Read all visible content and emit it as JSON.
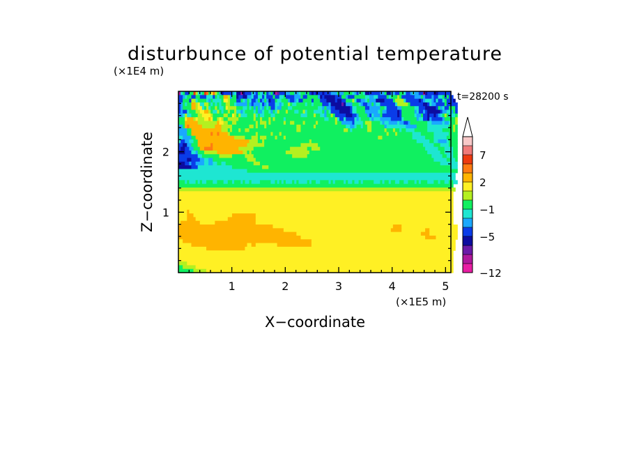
{
  "chart_data": {
    "type": "heatmap",
    "title": "disturbunce of potential temperature",
    "xlabel": "X−coordinate",
    "ylabel": "Z−coordinate",
    "x_unit": "(×1E5 m)",
    "y_unit": "(×1E4 m)",
    "time_label": "t=28200 s",
    "x_ticks": [
      "1",
      "2",
      "3",
      "4",
      "5"
    ],
    "y_ticks": [
      "1",
      "2"
    ],
    "xlim": [
      0,
      5.1
    ],
    "ylim": [
      0,
      3.0
    ],
    "colorbar": {
      "labels": [
        "7",
        "2",
        "−1",
        "−5",
        "−12"
      ],
      "label_values": [
        7,
        2,
        -1,
        -5,
        -12
      ],
      "levels": [
        -12,
        -10,
        -8,
        -6,
        -5,
        -3,
        -2,
        -1,
        0,
        1,
        2,
        3,
        5,
        7,
        9,
        11
      ],
      "colors": [
        "#e81ea3",
        "#b0189c",
        "#6a1aa8",
        "#0c0ca0",
        "#0a3ce8",
        "#1aa8ff",
        "#1ee6d2",
        "#10f060",
        "#b4f020",
        "#fff024",
        "#ffb400",
        "#ff7a12",
        "#ee3a10",
        "#f07a7a",
        "#f8c8c8"
      ],
      "extend": "max",
      "overflow_color": "#ffffff"
    },
    "field": {
      "rows_from_top": [
        "BGHEEHHMIGGHMLHJLIHFDEEEEFGDDBDEEEGFEHGFHEFHEBCEEEFFHHFFGHHFHEDEDEEDEEEFFFHFFHHHHGFEGHGDDEEEEEFFHDDFFEEHHGEEFGFFEEBDEEEDDEEEEEE",
        "EEFGHHEEHHEEEGGGEHGHHKKIFHHDEEDDFFGEEGGEGEEEHEEGGHEEEEFFFHEEHHHHHFDEDDDDDEEEHHFEEEHHHHHGGFFGGEEEEHGHHHIHEEEEEEFFFHFEEEFEEGGHEHEE",
        "EEHHHEIIGHHHHGFHGGGGHJJIHHHEEHGFHGEEFHEFHFDEEHGGHHHFEEFGEEHHHHEHHHEEEDDDDEDDEEHHHIGEEFFGHFFFDDDDEEEEHIIIIGEEEEEEDEFGGGFEGEEGHEEED",
        "EFHGHHKKIJGGIIHGHGHGHHIIHHGFFFFFHFEFFFGEFGEEEGGFGHHIHGGHHHHGHHGHHHHEEEFDDDDDCDFFFHHHGFEEFFHFGGEEEEEEEGIIIIIHEEEEEEDDEGFFEEEEHEEEEE",
        "EFHHHHKKIJJGHIGHHIHGGHJIIIIHHHGGHGHFHFGFHGHEEGFFHHHGGHHHHHHHHHHHHGGFHFFEEDDDDDDDEGGHHHHEEFFFFFHHGEEEEEFFHHHHHHGGEEEDDDDDEHFGEEHHHE",
        "EFEEGHHHIIJJKKIHGGIHGHHIHHIGGFGHHHHGHFFGHHGFHGIHHHIHHHGGHHIGHHHGGGGHFHGEEEEDDDDDEGGHHHHFFFFFFGHFFEEEEEDEHHHHHHFGEEFEDDDDDDEFFGGFHE",
        "FFGIGGHHHIIJJJJIHHHHHIIHHJIHIGGGHHHIGHGGHHHGGHHHHHHHHHHHHGGGHHHIHHGGFHHIHEEEEEDDDEEFHHHHFEGFFFHEEEEEEEDEHHHHHHGFFHEEDEEDEFGHIHFGGH",
        "HHHJKKKIJIIIJJKJHHIJIHHIIIIIHHHHHHHIHHIHHHIHIHHHHGHHHHHHHHHHHHHHHHHHGGHHHIGEEGEEEEGFGHHHHGFGGGFFFFFEEEEEGHHHHHHFGGEEDFEEEEEFHHHHHI",
        "HHHKKKKKKIIIIIIIIIKJJIIHHIIHHHHHHHHHIHIIIHIHHHHHHIHHIIHHHHIHHHHHIHHHHHHHHIHHFFFFFEGGGGHIIIHHHHGFGGFFFFGFFEEFHHHHHHHHGGFFFFFGFFGHHI",
        "FFHKLKKKKKKIIIIIIKKKIIIIIHHHHHHHHIIHIHHHIHHHHHHHHHHHHHHIIHHHHHHIHHHHHHHHHHHHHHGGFFGHHGHHIIHHHHHHFGGGGGGGGGFFFFFHHHHHGGGGGGGGGGHHIH",
        "FFFFHHKKKKKKKKKKKKKKIIIHIHHHIHHIIHHHHHHHHHHHHHHHHHHHHHHIIHHHHHHHHHHHHHHHHHHHHIIHGHHHHHHHIIHHHHHHIHHHIHHGHHGGGGHHHHHHGGGGGGGHHHHHIH",
        "FFFFHHKKKKKKKKKLKKLKKKKIHHHHHHHHHHHHIHHHHHHIHHHIHHHHHHHHHHHHHHHHHHHHHHHHHHHHHHHHHHHHHHHHHHHHHHHHHIHHHIHHHHHHHGGGGHHHHHHGGGGGGGHHHH",
        "GGFFFFHHKKKKKKKKKKKKKKKKKKIIIIIHHHIIIHIIIHHHHIHHHIHHHHHHHHHHHHHHHHHHHHHHHHHHHHHHHHHHHHHHHHHHHIIHHHHHHHHHHHHHHGGGGGGHHHHGGGGGGHHHHH",
        "GEEFFGGHHKKKKKKKKKKKKKKKKKKKKKKKKIIIIHHIHHHHHHHHHHHHHHHHHHHHHIHHHHHHHHHHHHHHHHHHHHHHHHHHHHHHHHHHHHHHHHHHHHHHHHHGGGGGGHHGGFFFFGHHHH",
        "EEDDFFHHHKKKKKKLKKKKKKKKKKKKKKKKIIIIIIIIHHHHHHHHHHHHHHHHHIIIIIIIIHHHHHHHHHHHHHHHHHHHHHHHHHHHHHHHHHHHHHHHHHHHHHHHHHGGGGGHHHGGGGHHHH",
        "EDDEEFFHHHKKLLLLKKKKKKKKKKKKIIIIIIIHHHHHHHHHHHHHHHHHIIIIIIIIHHIIIIHHHHHHHHHHHHHHHHHHHHHHHHHHHHHHHHHHHHHHHHHHHHHHHHHGGGGGGHHHGGGGHH",
        "DDDEEEGGFHHHIIIIIIKKKKKKKKKKKKIIHIHHHHHHHHHHHHHHHHIIIIIIIIIIIHHHHHHHHHHHHHHHHHHHHHHHHHHHHHHHHHHHHHHHHHHHHHHHHHHHHHHHGGGGGGHHGGGGHH",
        "EEEEEEEEEGGHHHHHHHHIIIIIIHHHHHHIIIIHHHHHHHHHHHHHHHHHHIIIIIIIHHHHHHHHHHHHHHHHHHHHHHHHHHHHHHHHHHHHHHHHHHHHHHHHHHHHHHHHHHGGGGGHHGGGHH",
        "EEEEDDEEEEFFGGFFHHHHHHHHHHHHHHHHIIIIHHHHHHHHHHHHHHHHHHHHHHHHHHHHHHHHHHHHHHHHHHHHHHHHHHHHHHHHHHHHHHHHHHHHHHHHHHHHHHHHHHHGGGGGGHHGGH",
        "DDDEEFEEFFFFGGFFGGHHGGHHHHHHHHHHHHHIIIHHHHHHHHHHHHHHHHHHHHHHHHHHHHHHHHHHHHHHHHHHHHHHHHHHHHHHHHHHHHHHHHHHHHHHHHHHHHHHHHHHHHGGGGGGGG",
        "DDDDDDEEEGGGGGGGGGGGGGGGGHHHHHHHHHHHHHHIIIHHHHHHHHHHHHHHHHHHHHHHHHHHHHHHHHHHHHHHHHHHHHHHHHHHHHHHHHHHHHHHHHHHHHHHHHHHHHHHHHHHHHHGGG",
        "GGGGGGGGGGGGGGGGGGGGGGGGGGGGGGGGHHHHHHHHHHHHHHHHHHHHHHHHHHHHHHHHHHHHHHHHHHHHHHHHHHHHHHHHHHHHHHHHHHHHHHHHHHHHHHHHHHHHHHHHHHHHHHHHHH",
        "GGGGGGGGGGGGGGGGGGGGGGGGGGGGGGGGGGGGGGGGGGGGGGGGGGGGGGGGGGGGGGGGGGGGGGGGGGGGGGGGGGGGGGGGGGGGGGGGGGGGGGGGGGGGGGGGGGGGGGGGGGGGGGGGG",
        "GGGGGGGGGGGGGGGGGGGGGGGGGGGGGGGGGGGGGGGGGGGGGGGGGGGGGGGGGGGGGGGGGGGGGGGGGGGGGGGGGGGGGGGGGGGGGGGGGGGGGGGGGGGGGGGGGGGGGGGGGGGGGGGGG",
        "HHHGHGGGHGHGGHHHGGHHHGGHHGHHHGHGGHGGGGHHHHHGGHGHGHGGGHGHGGGGHGHHGGHHHHGHGHHHHGHGGHGGHGHHHHHGGGHGHHGHHGGHHGGHHHGHGHHHGGGHHGHHGGHHGG",
        "HHHHHHHHHHHHHHHHHHHHHHHHHHHHHHHHHHHHHHHHHHHHHHHHHHHHHHHHHHHHHHHHHHHHHHHHHHHHHHHHHHHHHHHHHHHHHHHHHHHHHHHHHHHHHHHHHHHHHHHHHHHHHHHH",
        "IIIIIIIIIIIIIIIIIIIIIIIIIIIIIIIIIIIIIIIIIIIIIIIIIIIIIIIIIIIIIIIIIIIIIIIIIIIIIIIIIIIIIIIIIIIIIIIIIIIIIIIIIIIIIIIIIIIIIIIIIIIIIIIII",
        "JJJJJJJJJJJJJJJJJJJJJJJJJJJJJJJJJJJJJJJJJJJJJJJJJJJJJJJJJJJJJJJJJJJJJJJJJJJJJJJJJJJJJJJJJJJJJJJJJJJJJJJJJJJJJJJJJJJJJJJJJJJJJJJJ",
        "JJJJJJJJJJJJJJJJJJJJJJJJJJJJJJJJJJJJJJJJJJJJJJJJJJJJJJJJJJJJJJJJJJJJJJJJJJJJJJJJJJJJJJJJJJJJJJJJJJJJJJJJJJJJJJJJJJJJJJJJJJJJJJJJ",
        "JJJJJJJJJJJJJJJJJJJJJJJJJJJJJJJJJJJJJJJJJJJJJJJJJJJJJJJJJJJJJJJJJJJJJJJJJJJJJJJJJJJJJJJJJJJJJJJJJJJJJJJJJJJJJJJJJJJJJJJJJJJJJJJJ",
        "JJJJJJJJJJJJJJJJJJJJJJJJJJJJJJJJJJJJJJJJJJJJJJJJJJJJJJJJJJJJJJJJJJJJJJJJJJJJJJJJJJJJJJJJJJJJJJJJJJJJJJJJJJJJJJJJJJJJJJJJJJJJJJJJ",
        "JJJJJJJJJJJJJJJJJJJJJJJJJJJJJJJJJJJJJJJJJJJJJJJJJJJJJJJJJJJJJJJJJJJJJJJJJJJJJJJJJJJJJJJJJJJJJJJJJJJJJJJJJJJJJJJJJJJJJJJJJJJJJJJJ",
        "JJJJKJJJJJJJJJJJJJJJJJJJJJJJJJJJJJJJJJJJJJJJJJJJJJJJJJJJJJJJJJJJJJJJJJJJJJJJJJJJJJJJJJJJJJJJJJJJJJJJJJJJJJJJJJJJJJJJJJJJJJJJJJJJ",
        "JJJJKKKJJJJJJJJJJJJJJJJJJKKKKKKKKKKKJJJJJJJJJJJJJJJJJJJJJJJJJJJJJJJJJJJJJJJJJJJJJJJJJJJJJJJJJJJJJJJJJJJJJJJJJJJJJJJJJJJJJJJJJJJJ",
        "JJJJKKKKJJJJJJJJJJJJJJJKKKKKKKKKKKKKJJJJJJJJJJJJJJJJJJJJJJJJJJJJJJJJJJJJJJJJJJJJJJJJJJJJJJJJJJJJJJJJJJJJJJJJJJJJJJJJJJJJJJJJJJJJ",
        "JKKKKKKKKKJJJJJJJKKKKKKKKKKKKKKKKKKKJJJJJJJJJJJJJJJJJJJJJJJJJJJJJJJJJJJJJJJJJJJJJJJJJJJJJJJJJJJJJJJJJJJJJJJJJJJJJJJJJJJJJJJJJJJJ",
        "KKKKKKKKKKKKKKKKKKKKKKKKKKKKKKKKKKKKKKKKKKKKJJJJJJJJJJJJJJJJJJJJJJJJJJJJJJJJJJJJJJJJJJJJJJJJJJJJJJJJKKKKJJJJJJJJJJJJJJJJJJJJJJJJJJ",
        "KKKKKKKKKKKKKKKKKKKKKKKKKKKKKKKKKKKKKKKKKKKKKKKKKJJJJJJJJJJJJJJJJJJJJJJJJJJJJJJJJJJJJJJJJJJJJJJJJJJKKKKKJJJJJJJJJJJKKJJJJJJJJJJJJJ",
        "KKKKKKKKKKKKKKKKKKKKKKKKKKKKKKKKKKKKKKKKKKKKKKKKKKKKKKKJJJJJJJJJJJJJJJJJJJJJJJJJJJJJJJJJJJJJJJJJJJJJJJJJJJJJJJJJJKKKKJJJJJJJJJJJJJ",
        "KKKKKKKKKKKKKKKKKKKKKKKKKKKKKKKKKKKKKKKKKKKKKKKKKKKKKKKKKJJJJJJJJJJJJJJJJJJJJJJJJJJJJJJJJJJJJJJJJJJJJJJJJJJJJJJJJJJKKKKKJJJJJJJJJJ",
        "JJKKKKKKKKKKKKKKKKKKKKKKKKKKKKKKKKKKKKKKKKKKKKKKKKKKKKKKKKKKKKJJJJJJJJJJJJJJJJJJJJJJJJJJJJJJJJJJJJJJJJJJJJJJJJJJJJJJJJJJJJJJJJJJJ",
        "JJJJJJKKKKKKKKKKKKKKKKKKKKKKKKKKJJKKJJJJJJJJJJKKKKKKKKKKKKKKKKJJJJJJJJJJJJJJJJJJJJJJJJJJJJJJJJJJJJJJJJJJJJJJJJJJJJJJJJJJJJJJJJJJJ",
        "JJJJJJJJJJJJJKKKKKKKKKKKKKKKKKKJJJJJJJJJJJJJJJJJJJJJJJJJJJJJJJJJJJJJJJJJJJJJJJJJJJJJJJJJJJJJJJJJJJJJJJJJJJJJJJJJJJJJJJJJJJJJJJJJJ",
        "JJJJJJJJJJJJJJJJJJJJJJJJJJJJJJJJJJJJJJJJJJJJJJJJJJJJJJJJJJJJJJJJJJJJJJJJJJJJJJJJJJJJJJJJJJJJJJJJJJJJJJJJJJJJJJJJJJJJJJJJJJJJJJJJ",
        "JJJJJJJJJJJJJJJJJJJJJJJJJJJJJJJJJJJJJJJJJJJJJJJJJJJJJJJJJJJJJJJJJJJJJJJJJJJJJJJJJJJJJJJJJJJJJJJJJJJJJJJJJJJJJJJJJJJJJJJJJJJJJJJJ",
        "JJJJJJJJJJJJJJJJJJJJJJJJJJJJJJJJJJJJJJJJJJJJJJJJJJJJJJJJJJJJJJJJJJJJJJJJJJJJJJJJJJJJJJJJJJJJJJJJJJJJJJJJJJJJJJJJJJJJJJJJJJJJJJJJ",
        "IIIIJJJJJJJJJJJJJJJJJJJJJJJJJJJJJJJJJJJJJJJJJJJJJJJJJJJJJJJJJJJJJJJJJJJJJJJJJJJJJJJJJJJJJJJJJJJJJJJJJJJJJJJJJJJJJJJJJJJJJJJJJJJJ",
        "HHIIIIIIJJJJJJJJJJJJJJJJJJJJJJJJJJJJJJJJJJJJJJJJJJJJJJJJJJJJJJJJJJJJJJJJJJJJJJJJJJJJJJJJJJJJJJJJJJJJJJJJJJJJJJJJJJJJJJJJJJJJJJJJ",
        "HHHHHHHIIIIIIJJJJJJJJJJJJJJJJJJJJJJJJJJJJJJJJJJJJJJJJJJJJJJJJJJJJJJJJJJJJJJJJJJJJJJJJJJJJJJJJJJJJJJJJJJJJJJJJJJJJJJJJJJJJJJJJJJJ"
      ]
    }
  }
}
